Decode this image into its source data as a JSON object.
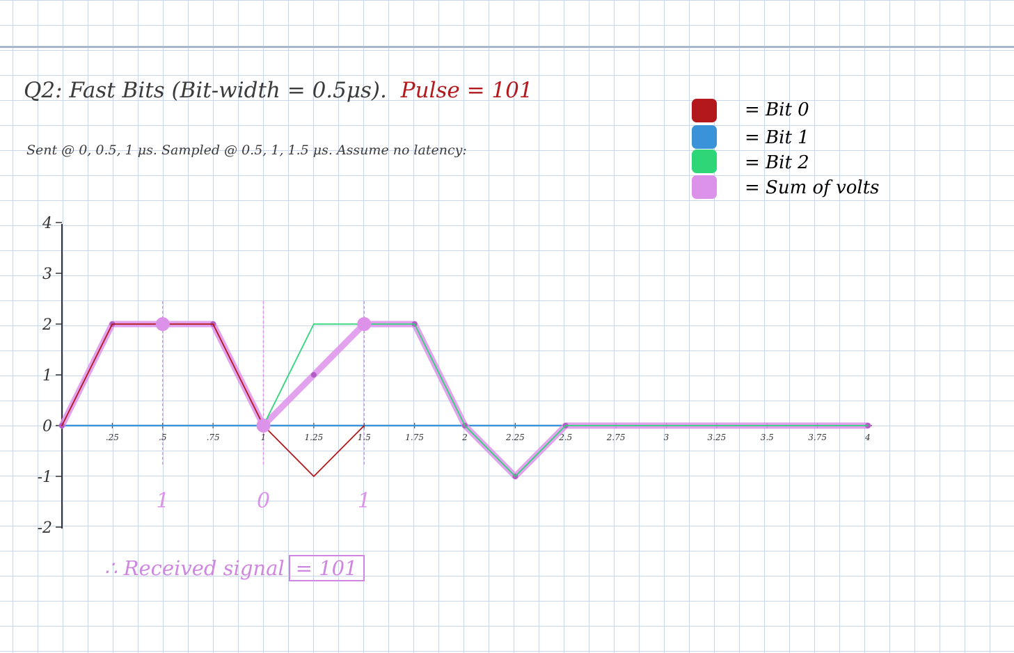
{
  "header": {
    "title": "Q2: Fast Bits (Bit-width = 0.5μs).",
    "pulse": "Pulse = 101",
    "subtitle": "Sent @ 0, 0.5, 1 μs. Sampled @ 0.5, 1, 1.5 μs. Assume no latency:"
  },
  "legend": [
    {
      "label": "= Bit 0",
      "color": "#b3191c"
    },
    {
      "label": "= Bit 1",
      "color": "#3a93d8"
    },
    {
      "label": "= Bit 2",
      "color": "#2fd677"
    },
    {
      "label": "= Sum of volts",
      "color": "#dd92ea"
    }
  ],
  "conclusion": {
    "prefix": "∴ Received signal",
    "result": "= 101"
  },
  "chart_data": {
    "type": "line",
    "title": "",
    "xlabel": "",
    "ylabel": "",
    "xlim": [
      0,
      4
    ],
    "ylim": [
      -2,
      4
    ],
    "x_ticks": [
      {
        "v": 0.25,
        "label": ".25"
      },
      {
        "v": 0.5,
        "label": ".5"
      },
      {
        "v": 0.75,
        "label": ".75"
      },
      {
        "v": 1,
        "label": "1"
      },
      {
        "v": 1.25,
        "label": "1.25"
      },
      {
        "v": 1.5,
        "label": "1.5"
      },
      {
        "v": 1.75,
        "label": "1.75"
      },
      {
        "v": 2,
        "label": "2"
      },
      {
        "v": 2.25,
        "label": "2.25"
      },
      {
        "v": 2.5,
        "label": "2.5"
      },
      {
        "v": 2.75,
        "label": "2.75"
      },
      {
        "v": 3,
        "label": "3"
      },
      {
        "v": 3.25,
        "label": "3.25"
      },
      {
        "v": 3.5,
        "label": "3.5"
      },
      {
        "v": 3.75,
        "label": "3.75"
      },
      {
        "v": 4,
        "label": "4"
      }
    ],
    "y_ticks": [
      {
        "v": 4,
        "label": "4"
      },
      {
        "v": 3,
        "label": "3"
      },
      {
        "v": 2,
        "label": "2"
      },
      {
        "v": 1,
        "label": "1"
      },
      {
        "v": 0,
        "label": "0"
      },
      {
        "v": -1,
        "label": "-1"
      },
      {
        "v": -2,
        "label": "-2"
      }
    ],
    "series": [
      {
        "name": "Bit 0",
        "color": "#b3191c",
        "points": [
          [
            0,
            0
          ],
          [
            0.25,
            2
          ],
          [
            0.75,
            2
          ],
          [
            1,
            0
          ],
          [
            1.25,
            -1
          ],
          [
            1.5,
            0
          ]
        ]
      },
      {
        "name": "Bit 1",
        "color": "#3a93d8",
        "points": [
          [
            0,
            0
          ],
          [
            4,
            0
          ]
        ]
      },
      {
        "name": "Bit 2",
        "color": "#2fd677",
        "points": [
          [
            1,
            0
          ],
          [
            1.25,
            2
          ],
          [
            1.75,
            2
          ],
          [
            2,
            0
          ],
          [
            2.25,
            -1
          ],
          [
            2.5,
            0
          ],
          [
            4,
            0
          ]
        ]
      },
      {
        "name": "Sum of volts",
        "color": "#dd92ea",
        "points": [
          [
            0,
            0
          ],
          [
            0.25,
            2
          ],
          [
            0.75,
            2
          ],
          [
            1,
            0
          ],
          [
            1.25,
            1
          ],
          [
            1.5,
            2
          ],
          [
            1.75,
            2
          ],
          [
            2,
            0
          ],
          [
            2.25,
            -1
          ],
          [
            2.5,
            0
          ],
          [
            4,
            0
          ]
        ]
      }
    ],
    "sample_markers": [
      {
        "x": 0.5,
        "y": 2,
        "bit": "1"
      },
      {
        "x": 1,
        "y": 0,
        "bit": "0"
      },
      {
        "x": 1.5,
        "y": 2,
        "bit": "1"
      }
    ]
  }
}
